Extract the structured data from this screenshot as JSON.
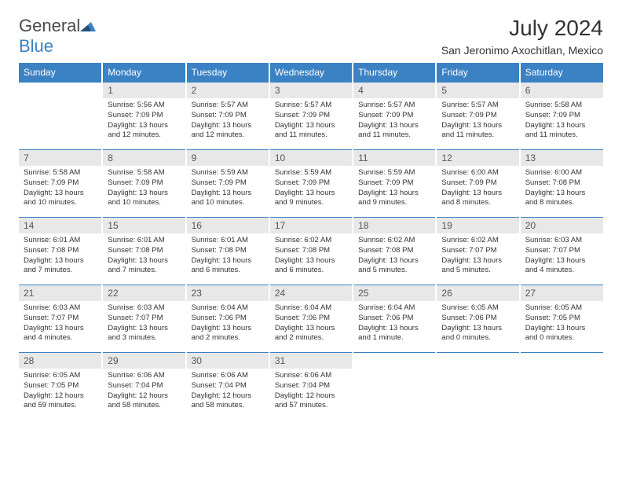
{
  "brand": {
    "general": "General",
    "blue": "Blue"
  },
  "title": "July 2024",
  "location": "San Jeronimo Axochitlan, Mexico",
  "colors": {
    "header_bg": "#3b82c4",
    "header_text": "#ffffff",
    "daynum_bg": "#e8e8e8",
    "row_border": "#3b82c4",
    "body_text": "#333333",
    "logo_gray": "#4a4a4a",
    "logo_blue": "#3b82c4",
    "page_bg": "#ffffff"
  },
  "day_headers": [
    "Sunday",
    "Monday",
    "Tuesday",
    "Wednesday",
    "Thursday",
    "Friday",
    "Saturday"
  ],
  "weeks": [
    [
      {
        "n": "",
        "empty": true
      },
      {
        "n": "1",
        "sunrise": "Sunrise: 5:56 AM",
        "sunset": "Sunset: 7:09 PM",
        "daylight": "Daylight: 13 hours and 12 minutes."
      },
      {
        "n": "2",
        "sunrise": "Sunrise: 5:57 AM",
        "sunset": "Sunset: 7:09 PM",
        "daylight": "Daylight: 13 hours and 12 minutes."
      },
      {
        "n": "3",
        "sunrise": "Sunrise: 5:57 AM",
        "sunset": "Sunset: 7:09 PM",
        "daylight": "Daylight: 13 hours and 11 minutes."
      },
      {
        "n": "4",
        "sunrise": "Sunrise: 5:57 AM",
        "sunset": "Sunset: 7:09 PM",
        "daylight": "Daylight: 13 hours and 11 minutes."
      },
      {
        "n": "5",
        "sunrise": "Sunrise: 5:57 AM",
        "sunset": "Sunset: 7:09 PM",
        "daylight": "Daylight: 13 hours and 11 minutes."
      },
      {
        "n": "6",
        "sunrise": "Sunrise: 5:58 AM",
        "sunset": "Sunset: 7:09 PM",
        "daylight": "Daylight: 13 hours and 11 minutes."
      }
    ],
    [
      {
        "n": "7",
        "sunrise": "Sunrise: 5:58 AM",
        "sunset": "Sunset: 7:09 PM",
        "daylight": "Daylight: 13 hours and 10 minutes."
      },
      {
        "n": "8",
        "sunrise": "Sunrise: 5:58 AM",
        "sunset": "Sunset: 7:09 PM",
        "daylight": "Daylight: 13 hours and 10 minutes."
      },
      {
        "n": "9",
        "sunrise": "Sunrise: 5:59 AM",
        "sunset": "Sunset: 7:09 PM",
        "daylight": "Daylight: 13 hours and 10 minutes."
      },
      {
        "n": "10",
        "sunrise": "Sunrise: 5:59 AM",
        "sunset": "Sunset: 7:09 PM",
        "daylight": "Daylight: 13 hours and 9 minutes."
      },
      {
        "n": "11",
        "sunrise": "Sunrise: 5:59 AM",
        "sunset": "Sunset: 7:09 PM",
        "daylight": "Daylight: 13 hours and 9 minutes."
      },
      {
        "n": "12",
        "sunrise": "Sunrise: 6:00 AM",
        "sunset": "Sunset: 7:09 PM",
        "daylight": "Daylight: 13 hours and 8 minutes."
      },
      {
        "n": "13",
        "sunrise": "Sunrise: 6:00 AM",
        "sunset": "Sunset: 7:08 PM",
        "daylight": "Daylight: 13 hours and 8 minutes."
      }
    ],
    [
      {
        "n": "14",
        "sunrise": "Sunrise: 6:01 AM",
        "sunset": "Sunset: 7:08 PM",
        "daylight": "Daylight: 13 hours and 7 minutes."
      },
      {
        "n": "15",
        "sunrise": "Sunrise: 6:01 AM",
        "sunset": "Sunset: 7:08 PM",
        "daylight": "Daylight: 13 hours and 7 minutes."
      },
      {
        "n": "16",
        "sunrise": "Sunrise: 6:01 AM",
        "sunset": "Sunset: 7:08 PM",
        "daylight": "Daylight: 13 hours and 6 minutes."
      },
      {
        "n": "17",
        "sunrise": "Sunrise: 6:02 AM",
        "sunset": "Sunset: 7:08 PM",
        "daylight": "Daylight: 13 hours and 6 minutes."
      },
      {
        "n": "18",
        "sunrise": "Sunrise: 6:02 AM",
        "sunset": "Sunset: 7:08 PM",
        "daylight": "Daylight: 13 hours and 5 minutes."
      },
      {
        "n": "19",
        "sunrise": "Sunrise: 6:02 AM",
        "sunset": "Sunset: 7:07 PM",
        "daylight": "Daylight: 13 hours and 5 minutes."
      },
      {
        "n": "20",
        "sunrise": "Sunrise: 6:03 AM",
        "sunset": "Sunset: 7:07 PM",
        "daylight": "Daylight: 13 hours and 4 minutes."
      }
    ],
    [
      {
        "n": "21",
        "sunrise": "Sunrise: 6:03 AM",
        "sunset": "Sunset: 7:07 PM",
        "daylight": "Daylight: 13 hours and 4 minutes."
      },
      {
        "n": "22",
        "sunrise": "Sunrise: 6:03 AM",
        "sunset": "Sunset: 7:07 PM",
        "daylight": "Daylight: 13 hours and 3 minutes."
      },
      {
        "n": "23",
        "sunrise": "Sunrise: 6:04 AM",
        "sunset": "Sunset: 7:06 PM",
        "daylight": "Daylight: 13 hours and 2 minutes."
      },
      {
        "n": "24",
        "sunrise": "Sunrise: 6:04 AM",
        "sunset": "Sunset: 7:06 PM",
        "daylight": "Daylight: 13 hours and 2 minutes."
      },
      {
        "n": "25",
        "sunrise": "Sunrise: 6:04 AM",
        "sunset": "Sunset: 7:06 PM",
        "daylight": "Daylight: 13 hours and 1 minute."
      },
      {
        "n": "26",
        "sunrise": "Sunrise: 6:05 AM",
        "sunset": "Sunset: 7:06 PM",
        "daylight": "Daylight: 13 hours and 0 minutes."
      },
      {
        "n": "27",
        "sunrise": "Sunrise: 6:05 AM",
        "sunset": "Sunset: 7:05 PM",
        "daylight": "Daylight: 13 hours and 0 minutes."
      }
    ],
    [
      {
        "n": "28",
        "sunrise": "Sunrise: 6:05 AM",
        "sunset": "Sunset: 7:05 PM",
        "daylight": "Daylight: 12 hours and 59 minutes."
      },
      {
        "n": "29",
        "sunrise": "Sunrise: 6:06 AM",
        "sunset": "Sunset: 7:04 PM",
        "daylight": "Daylight: 12 hours and 58 minutes."
      },
      {
        "n": "30",
        "sunrise": "Sunrise: 6:06 AM",
        "sunset": "Sunset: 7:04 PM",
        "daylight": "Daylight: 12 hours and 58 minutes."
      },
      {
        "n": "31",
        "sunrise": "Sunrise: 6:06 AM",
        "sunset": "Sunset: 7:04 PM",
        "daylight": "Daylight: 12 hours and 57 minutes."
      },
      {
        "n": "",
        "empty": true
      },
      {
        "n": "",
        "empty": true
      },
      {
        "n": "",
        "empty": true
      }
    ]
  ]
}
